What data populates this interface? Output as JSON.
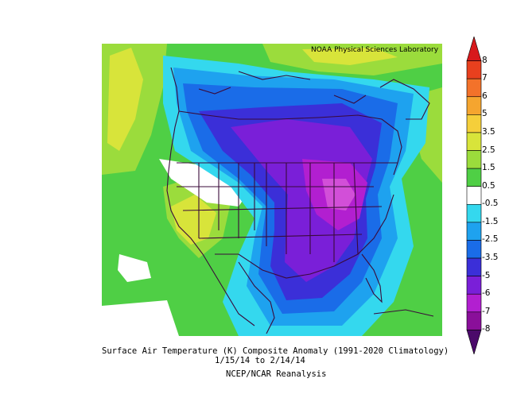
{
  "credit": "NOAA Physical Sciences Laboratory",
  "caption": {
    "line1": "Surface Air Temperature (K) Composite Anomaly (1991-2020 Climatology)",
    "line2": "1/15/14 to 2/14/14",
    "line3": "NCEP/NCAR Reanalysis"
  },
  "colorbar": {
    "labels": [
      "8",
      "7",
      "6",
      "5",
      "3.5",
      "2.5",
      "1.5",
      "0.5",
      "-0.5",
      "-1.5",
      "-2.5",
      "-3.5",
      "-5",
      "-6",
      "-7",
      "-8"
    ],
    "colors": [
      "#d7191c",
      "#e8401e",
      "#f3722a",
      "#f5a52f",
      "#f5cf3a",
      "#d8e43a",
      "#9bdc3c",
      "#4fcf45",
      "#ffffff",
      "#34d8ee",
      "#1ea2ef",
      "#1a6ce8",
      "#3b2fd8",
      "#7a1fd8",
      "#b21fd0",
      "#8a0f9a",
      "#4b0a6a"
    ]
  },
  "map": {
    "region": "North America",
    "bands": [
      {
        "name": "band-cyan",
        "color": "#34d8ee"
      },
      {
        "name": "band-light-blue",
        "color": "#1ea2ef"
      },
      {
        "name": "band-blue",
        "color": "#1a6ce8"
      },
      {
        "name": "band-indigo",
        "color": "#3b2fd8"
      },
      {
        "name": "band-violet",
        "color": "#7a1fd8"
      },
      {
        "name": "band-magenta",
        "color": "#b21fd0"
      }
    ]
  }
}
